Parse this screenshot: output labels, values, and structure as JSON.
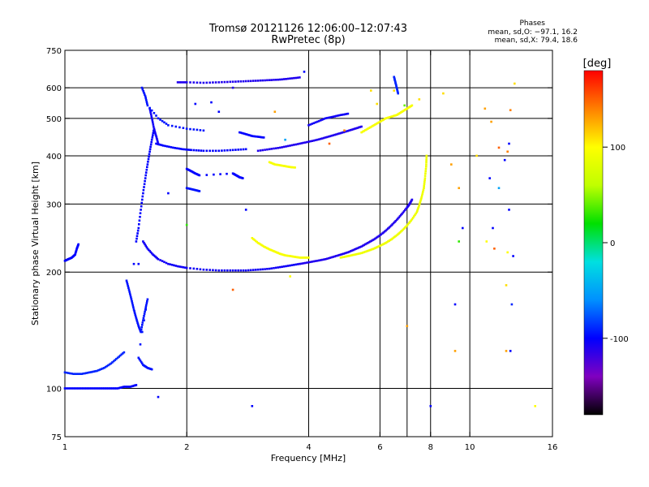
{
  "chart_data": {
    "type": "scatter",
    "title": "Tromsø 20121126 12:06:00–12:07:43",
    "subtitle": "RwPretec (8p)",
    "phase_stats": {
      "title": "Phases",
      "line_o": "mean, sd,O: −97.1, 16.2",
      "line_x": "mean, sd,X:  79.4, 18.6"
    },
    "xlabel": "Frequency [MHz]",
    "ylabel": "Stationary phase Virtual Height [km]",
    "x_scale": "log",
    "y_scale": "log",
    "xlim": [
      1,
      16
    ],
    "ylim": [
      75,
      750
    ],
    "x_ticks": [
      1,
      2,
      4,
      6,
      8,
      10,
      16
    ],
    "x_gridlines": [
      2,
      4,
      6,
      7,
      8,
      10
    ],
    "y_ticks": [
      75,
      100,
      200,
      300,
      400,
      500,
      600,
      750
    ],
    "y_gridlines": [
      100,
      200,
      300,
      400,
      500,
      600
    ],
    "grid": true,
    "colorbar": {
      "label": "[deg]",
      "range": [
        -180,
        180
      ],
      "ticks": [
        -100,
        0,
        100
      ],
      "colors": [
        "#000000",
        "#8000c0",
        "#0000ff",
        "#0090ff",
        "#00e0e0",
        "#00e000",
        "#c0ff00",
        "#ffff00",
        "#ff8000",
        "#ff0000"
      ]
    },
    "traces": [
      {
        "phase": -100,
        "points": [
          [
            1.0,
            214
          ],
          [
            1.02,
            216
          ],
          [
            1.04,
            218
          ],
          [
            1.06,
            222
          ],
          [
            1.07,
            230
          ],
          [
            1.08,
            236
          ]
        ]
      },
      {
        "phase": -100,
        "points": [
          [
            1.0,
            100
          ],
          [
            1.05,
            100
          ],
          [
            1.1,
            100
          ],
          [
            1.15,
            100
          ],
          [
            1.2,
            100
          ],
          [
            1.25,
            100
          ],
          [
            1.3,
            100
          ],
          [
            1.35,
            100
          ],
          [
            1.4,
            101
          ],
          [
            1.45,
            101
          ],
          [
            1.5,
            102
          ]
        ]
      },
      {
        "phase": -90,
        "points": [
          [
            1.0,
            110
          ],
          [
            1.05,
            109
          ],
          [
            1.1,
            109
          ],
          [
            1.15,
            110
          ],
          [
            1.2,
            111
          ],
          [
            1.25,
            113
          ],
          [
            1.3,
            116
          ],
          [
            1.35,
            120
          ],
          [
            1.4,
            124
          ]
        ]
      },
      {
        "phase": -95,
        "points": [
          [
            1.42,
            190
          ],
          [
            1.44,
            180
          ],
          [
            1.46,
            170
          ],
          [
            1.48,
            160
          ],
          [
            1.5,
            152
          ],
          [
            1.52,
            145
          ],
          [
            1.54,
            140
          ],
          [
            1.56,
            150
          ],
          [
            1.58,
            160
          ],
          [
            1.6,
            170
          ],
          [
            1.52,
            120
          ],
          [
            1.56,
            115
          ],
          [
            1.6,
            113
          ],
          [
            1.64,
            112
          ]
        ]
      },
      {
        "phase": -100,
        "points": [
          [
            1.5,
            240
          ],
          [
            1.52,
            260
          ],
          [
            1.54,
            290
          ],
          [
            1.56,
            320
          ],
          [
            1.58,
            350
          ],
          [
            1.6,
            380
          ],
          [
            1.62,
            410
          ],
          [
            1.64,
            440
          ],
          [
            1.66,
            470
          ]
        ]
      },
      {
        "phase": -105,
        "points": [
          [
            1.56,
            240
          ],
          [
            1.6,
            230
          ],
          [
            1.65,
            222
          ],
          [
            1.7,
            216
          ],
          [
            1.8,
            210
          ],
          [
            1.9,
            207
          ],
          [
            2.0,
            205
          ],
          [
            2.2,
            203
          ],
          [
            2.4,
            202
          ],
          [
            2.6,
            202
          ],
          [
            2.8,
            202
          ],
          [
            3.0,
            203
          ],
          [
            3.2,
            204
          ],
          [
            3.4,
            206
          ],
          [
            3.6,
            208
          ],
          [
            3.8,
            210
          ]
        ]
      },
      {
        "phase": -110,
        "points": [
          [
            3.8,
            210
          ],
          [
            4.0,
            212
          ],
          [
            4.2,
            214
          ],
          [
            4.4,
            216
          ],
          [
            4.6,
            219
          ],
          [
            4.8,
            222
          ],
          [
            5.0,
            225
          ],
          [
            5.2,
            229
          ],
          [
            5.4,
            233
          ],
          [
            5.6,
            238
          ],
          [
            5.8,
            243
          ],
          [
            6.0,
            249
          ],
          [
            6.2,
            256
          ],
          [
            6.4,
            264
          ],
          [
            6.6,
            273
          ],
          [
            6.8,
            283
          ],
          [
            7.0,
            294
          ],
          [
            7.1,
            300
          ],
          [
            7.2,
            308
          ]
        ]
      },
      {
        "phase": 95,
        "points": [
          [
            2.9,
            245
          ],
          [
            3.0,
            238
          ],
          [
            3.1,
            233
          ],
          [
            3.2,
            229
          ],
          [
            3.3,
            226
          ],
          [
            3.4,
            223
          ],
          [
            3.5,
            221
          ],
          [
            3.6,
            220
          ],
          [
            3.7,
            219
          ],
          [
            3.8,
            218
          ],
          [
            3.9,
            218
          ],
          [
            4.0,
            218
          ]
        ]
      },
      {
        "phase": 90,
        "points": [
          [
            4.8,
            218
          ],
          [
            5.0,
            220
          ],
          [
            5.2,
            222
          ],
          [
            5.4,
            224
          ],
          [
            5.6,
            227
          ],
          [
            5.8,
            230
          ],
          [
            6.0,
            234
          ],
          [
            6.2,
            238
          ],
          [
            6.4,
            243
          ],
          [
            6.6,
            249
          ],
          [
            6.8,
            256
          ],
          [
            7.0,
            264
          ],
          [
            7.2,
            274
          ],
          [
            7.4,
            286
          ],
          [
            7.5,
            298
          ],
          [
            7.6,
            312
          ],
          [
            7.7,
            330
          ],
          [
            7.75,
            350
          ],
          [
            7.8,
            375
          ],
          [
            7.82,
            400
          ]
        ]
      },
      {
        "phase": -100,
        "points": [
          [
            1.68,
            430
          ],
          [
            1.75,
            425
          ],
          [
            1.85,
            420
          ],
          [
            1.95,
            416
          ],
          [
            2.05,
            414
          ],
          [
            2.2,
            412
          ],
          [
            2.4,
            412
          ],
          [
            2.6,
            414
          ],
          [
            2.8,
            416
          ]
        ]
      },
      {
        "phase": -110,
        "points": [
          [
            3.0,
            412
          ],
          [
            3.2,
            416
          ],
          [
            3.4,
            420
          ],
          [
            3.6,
            425
          ],
          [
            3.8,
            430
          ],
          [
            4.0,
            435
          ],
          [
            4.2,
            440
          ],
          [
            4.4,
            446
          ],
          [
            4.6,
            452
          ],
          [
            4.8,
            458
          ],
          [
            5.0,
            464
          ],
          [
            5.2,
            470
          ],
          [
            5.4,
            476
          ]
        ]
      },
      {
        "phase": -105,
        "points": [
          [
            1.62,
            530
          ],
          [
            1.64,
            500
          ],
          [
            1.66,
            470
          ],
          [
            1.68,
            450
          ],
          [
            1.7,
            430
          ]
        ]
      },
      {
        "phase": -95,
        "points": [
          [
            1.55,
            600
          ],
          [
            1.58,
            570
          ],
          [
            1.6,
            540
          ],
          [
            1.7,
            500
          ],
          [
            1.8,
            480
          ],
          [
            2.0,
            470
          ],
          [
            2.2,
            465
          ]
        ]
      },
      {
        "phase": -110,
        "points": [
          [
            1.9,
            620
          ],
          [
            2.0,
            620
          ],
          [
            2.2,
            618
          ],
          [
            2.4,
            620
          ],
          [
            2.6,
            622
          ],
          [
            2.8,
            624
          ],
          [
            3.0,
            626
          ],
          [
            3.2,
            628
          ],
          [
            3.4,
            630
          ],
          [
            3.6,
            634
          ],
          [
            3.8,
            638
          ]
        ]
      },
      {
        "phase": -100,
        "points": [
          [
            2.0,
            370
          ],
          [
            2.05,
            365
          ],
          [
            2.1,
            360
          ],
          [
            2.15,
            356
          ],
          [
            2.6,
            360
          ],
          [
            2.65,
            356
          ],
          [
            2.7,
            352
          ],
          [
            2.75,
            350
          ]
        ]
      },
      {
        "phase": -95,
        "points": [
          [
            2.0,
            330
          ],
          [
            2.05,
            328
          ],
          [
            2.1,
            326
          ],
          [
            2.15,
            324
          ]
        ]
      },
      {
        "phase": -105,
        "points": [
          [
            4.0,
            480
          ],
          [
            4.2,
            490
          ],
          [
            4.4,
            500
          ],
          [
            4.6,
            505
          ],
          [
            4.8,
            510
          ],
          [
            5.0,
            514
          ]
        ]
      },
      {
        "phase": 95,
        "points": [
          [
            3.2,
            385
          ],
          [
            3.3,
            380
          ],
          [
            3.4,
            378
          ],
          [
            3.5,
            376
          ],
          [
            3.6,
            374
          ],
          [
            3.7,
            373
          ]
        ]
      },
      {
        "phase": 95,
        "points": [
          [
            5.4,
            460
          ],
          [
            5.6,
            470
          ],
          [
            5.8,
            480
          ],
          [
            6.0,
            490
          ],
          [
            6.2,
            500
          ],
          [
            6.4,
            505
          ],
          [
            6.6,
            510
          ],
          [
            6.8,
            520
          ],
          [
            7.0,
            530
          ],
          [
            7.2,
            540
          ]
        ]
      },
      {
        "phase": -90,
        "points": [
          [
            6.5,
            640
          ],
          [
            6.55,
            620
          ],
          [
            6.6,
            600
          ],
          [
            6.65,
            580
          ]
        ]
      },
      {
        "phase": -100,
        "points": [
          [
            2.7,
            460
          ],
          [
            2.8,
            455
          ],
          [
            2.9,
            450
          ],
          [
            3.0,
            448
          ],
          [
            3.1,
            446
          ]
        ]
      }
    ],
    "points": [
      {
        "x": 1.7,
        "y": 95,
        "phase": -100
      },
      {
        "x": 2.9,
        "y": 90,
        "phase": -100
      },
      {
        "x": 8.0,
        "y": 90,
        "phase": -100
      },
      {
        "x": 14.5,
        "y": 90,
        "phase": 100
      },
      {
        "x": 7.0,
        "y": 145,
        "phase": 130
      },
      {
        "x": 9.2,
        "y": 125,
        "phase": 130
      },
      {
        "x": 9.2,
        "y": 165,
        "phase": -100
      },
      {
        "x": 12.3,
        "y": 125,
        "phase": 130
      },
      {
        "x": 12.6,
        "y": 125,
        "phase": -100
      },
      {
        "x": 12.7,
        "y": 165,
        "phase": -90
      },
      {
        "x": 12.3,
        "y": 185,
        "phase": 110
      },
      {
        "x": 2.6,
        "y": 180,
        "phase": 150
      },
      {
        "x": 3.6,
        "y": 195,
        "phase": 100
      },
      {
        "x": 9.6,
        "y": 260,
        "phase": -100
      },
      {
        "x": 9.4,
        "y": 240,
        "phase": 30
      },
      {
        "x": 11.5,
        "y": 230,
        "phase": 150
      },
      {
        "x": 11.0,
        "y": 240,
        "phase": 100
      },
      {
        "x": 12.4,
        "y": 225,
        "phase": 100
      },
      {
        "x": 11.4,
        "y": 260,
        "phase": -100
      },
      {
        "x": 12.5,
        "y": 290,
        "phase": -100
      },
      {
        "x": 12.8,
        "y": 220,
        "phase": -100
      },
      {
        "x": 11.8,
        "y": 330,
        "phase": -50
      },
      {
        "x": 11.2,
        "y": 350,
        "phase": -100
      },
      {
        "x": 12.2,
        "y": 390,
        "phase": -100
      },
      {
        "x": 12.5,
        "y": 430,
        "phase": -100
      },
      {
        "x": 11.8,
        "y": 420,
        "phase": 150
      },
      {
        "x": 12.4,
        "y": 410,
        "phase": 140
      },
      {
        "x": 11.3,
        "y": 490,
        "phase": 130
      },
      {
        "x": 12.6,
        "y": 525,
        "phase": 140
      },
      {
        "x": 12.9,
        "y": 615,
        "phase": 110
      },
      {
        "x": 10.9,
        "y": 530,
        "phase": 130
      },
      {
        "x": 10.4,
        "y": 400,
        "phase": 110
      },
      {
        "x": 8.6,
        "y": 580,
        "phase": 110
      },
      {
        "x": 9.0,
        "y": 380,
        "phase": 130
      },
      {
        "x": 9.4,
        "y": 330,
        "phase": 130
      },
      {
        "x": 2.0,
        "y": 265,
        "phase": 30
      },
      {
        "x": 1.8,
        "y": 320,
        "phase": -100
      },
      {
        "x": 2.8,
        "y": 290,
        "phase": -100
      },
      {
        "x": 3.5,
        "y": 440,
        "phase": -50
      },
      {
        "x": 4.5,
        "y": 430,
        "phase": 150
      },
      {
        "x": 5.7,
        "y": 590,
        "phase": 110
      },
      {
        "x": 6.5,
        "y": 590,
        "phase": 110
      },
      {
        "x": 6.9,
        "y": 540,
        "phase": 40
      },
      {
        "x": 7.5,
        "y": 560,
        "phase": 110
      },
      {
        "x": 5.9,
        "y": 545,
        "phase": 110
      },
      {
        "x": 4.9,
        "y": 465,
        "phase": 140
      },
      {
        "x": 3.3,
        "y": 520,
        "phase": 130
      },
      {
        "x": 2.4,
        "y": 520,
        "phase": -100
      },
      {
        "x": 1.48,
        "y": 210,
        "phase": -100
      },
      {
        "x": 1.52,
        "y": 210,
        "phase": -100
      },
      {
        "x": 3.9,
        "y": 660,
        "phase": -100
      },
      {
        "x": 2.6,
        "y": 600,
        "phase": -110
      },
      {
        "x": 2.3,
        "y": 550,
        "phase": -100
      },
      {
        "x": 2.1,
        "y": 545,
        "phase": -100
      }
    ]
  }
}
